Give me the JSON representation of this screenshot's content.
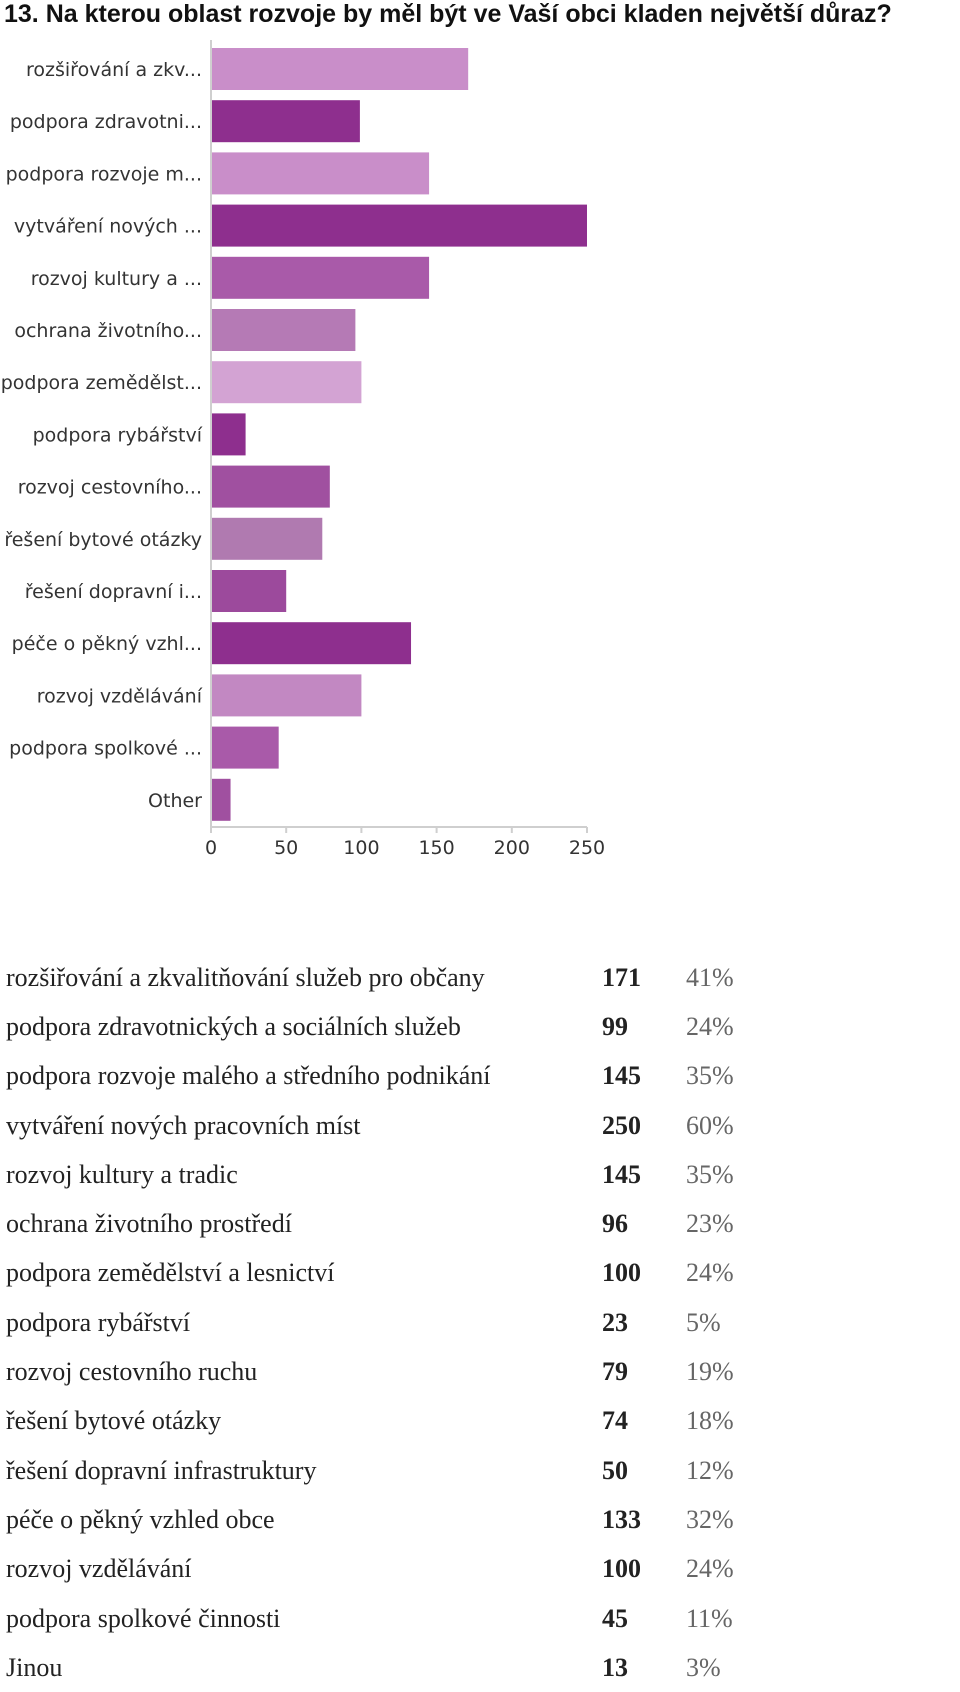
{
  "title": "13. Na kterou oblast rozvoje by měl být ve Vaší obci kladen největší důraz?",
  "chart_data": {
    "type": "bar",
    "orientation": "horizontal",
    "categories": [
      "rozšiřování a zkv...",
      "podpora zdravotni...",
      "podpora rozvoje m...",
      "vytváření nových ...",
      "rozvoj kultury a ...",
      "ochrana životního...",
      "podpora zemědělst...",
      "podpora rybářství",
      "rozvoj cestovního...",
      "řešení bytové otázky",
      "řešení dopravní i...",
      "péče o pěkný vzhl...",
      "rozvoj vzdělávání",
      "podpora spolkové ...",
      "Other"
    ],
    "values": [
      171,
      99,
      145,
      250,
      145,
      96,
      100,
      23,
      79,
      74,
      50,
      133,
      100,
      45,
      13
    ],
    "colors": [
      "#c98ec9",
      "#8e2f8e",
      "#c98ec9",
      "#8e2f8e",
      "#a95aa9",
      "#b57ab5",
      "#d3a3d3",
      "#8e2f8e",
      "#a050a0",
      "#b07ab0",
      "#9c4a9c",
      "#8e2f8e",
      "#c288c2",
      "#a95aa9",
      "#a050a0"
    ],
    "xlim": [
      0,
      250
    ],
    "xticks": [
      "0",
      "50",
      "100",
      "150",
      "200",
      "250"
    ],
    "grid": false,
    "legend": "none"
  },
  "table": {
    "rows": [
      {
        "label": "rozšiřování a zkvalitňování služeb pro občany",
        "count": "171",
        "percent": "41%"
      },
      {
        "label": "podpora zdravotnických a sociálních služeb",
        "count": "99",
        "percent": "24%"
      },
      {
        "label": "podpora rozvoje malého a středního podnikání",
        "count": "145",
        "percent": "35%"
      },
      {
        "label": "vytváření nových pracovních míst",
        "count": "250",
        "percent": "60%"
      },
      {
        "label": "rozvoj kultury a tradic",
        "count": "145",
        "percent": "35%"
      },
      {
        "label": "ochrana životního prostředí",
        "count": "96",
        "percent": "23%"
      },
      {
        "label": "podpora zemědělství a lesnictví",
        "count": "100",
        "percent": "24%"
      },
      {
        "label": "podpora rybářství",
        "count": "23",
        "percent": "5%"
      },
      {
        "label": "rozvoj cestovního ruchu",
        "count": "79",
        "percent": "19%"
      },
      {
        "label": "řešení bytové otázky",
        "count": "74",
        "percent": "18%"
      },
      {
        "label": "řešení dopravní infrastruktury",
        "count": "50",
        "percent": "12%"
      },
      {
        "label": "péče o pěkný vzhled obce",
        "count": "133",
        "percent": "32%"
      },
      {
        "label": "rozvoj vzdělávání",
        "count": "100",
        "percent": "24%"
      },
      {
        "label": "podpora spolkové činnosti",
        "count": "45",
        "percent": "11%"
      },
      {
        "label": "Jinou",
        "count": "13",
        "percent": "3%"
      }
    ]
  }
}
